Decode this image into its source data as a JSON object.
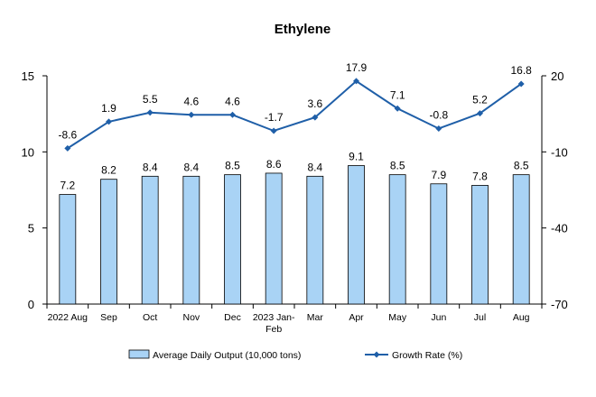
{
  "chart_data": {
    "type": "bar+line",
    "title": "Ethylene",
    "categories": [
      "2022 Aug",
      "Sep",
      "Oct",
      "Nov",
      "Dec",
      "2023 Jan-\nFeb",
      "Mar",
      "Apr",
      "May",
      "Jun",
      "Jul",
      "Aug"
    ],
    "series": [
      {
        "name": "Average Daily Output (10,000 tons)",
        "type": "bar",
        "axis": "left",
        "values": [
          7.2,
          8.2,
          8.4,
          8.4,
          8.5,
          8.6,
          8.4,
          9.1,
          8.5,
          7.9,
          7.8,
          8.5
        ],
        "labels": [
          "7.2",
          "8.2",
          "8.4",
          "8.4",
          "8.5",
          "8.6",
          "8.4",
          "9.1",
          "8.5",
          "7.9",
          "7.8",
          "8.5"
        ],
        "color": "#a9d3f5",
        "stroke": "#000000"
      },
      {
        "name": "Growth Rate (%)",
        "type": "line",
        "axis": "right",
        "values": [
          -8.6,
          1.9,
          5.5,
          4.6,
          4.6,
          -1.7,
          3.6,
          17.9,
          7.1,
          -0.8,
          5.2,
          16.8
        ],
        "labels": [
          "-8.6",
          "1.9",
          "5.5",
          "4.6",
          "4.6",
          "-1.7",
          "3.6",
          "17.9",
          "7.1",
          "-0.8",
          "5.2",
          "16.8"
        ],
        "color": "#1f5fa8"
      }
    ],
    "y_left": {
      "min": 0,
      "max": 15,
      "ticks": [
        "0",
        "5",
        "10",
        "15"
      ],
      "tick_values": [
        0,
        5,
        10,
        15
      ]
    },
    "y_right": {
      "min": -70,
      "max": 20,
      "ticks": [
        "-70",
        "-40",
        "-10",
        "20"
      ],
      "tick_values": [
        -70,
        -40,
        -10,
        20
      ]
    },
    "grid": false,
    "legend_position": "bottom"
  }
}
